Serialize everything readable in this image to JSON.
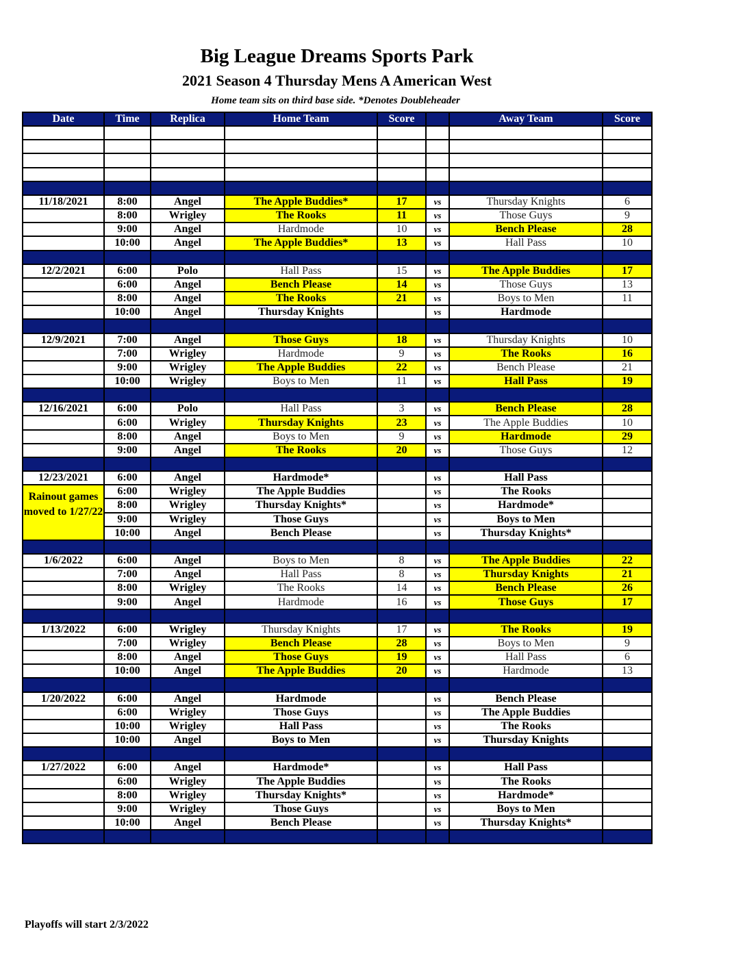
{
  "title": "Big League Dreams Sports Park",
  "subtitle": "2021 Season 4 Thursday Mens A American West",
  "note": "Home team sits on third base side.  *Denotes Doubleheader",
  "footer": "Playoffs will start 2/3/2022",
  "colors": {
    "header": "#0a1a7a",
    "winner": "#ffff00"
  },
  "columns": [
    "Date",
    "Time",
    "Replica",
    "Home Team",
    "Score",
    "",
    "Away Team",
    "Score"
  ],
  "vs_label": "vs",
  "blank_rows": 4,
  "groups": [
    {
      "date": "11/18/2021",
      "games": [
        {
          "time": "8:00",
          "replica": "Angel",
          "home": "The Apple Buddies*",
          "home_score": "17",
          "away": "Thursday Knights",
          "away_score": "6",
          "winner": "home"
        },
        {
          "time": "8:00",
          "replica": "Wrigley",
          "home": "The Rooks",
          "home_score": "11",
          "away": "Those Guys",
          "away_score": "9",
          "winner": "home"
        },
        {
          "time": "9:00",
          "replica": "Angel",
          "home": "Hardmode",
          "home_score": "10",
          "away": "Bench Please",
          "away_score": "28",
          "winner": "away"
        },
        {
          "time": "10:00",
          "replica": "Angel",
          "home": "The Apple Buddies*",
          "home_score": "13",
          "away": "Hall Pass",
          "away_score": "10",
          "winner": "home"
        }
      ]
    },
    {
      "date": "12/2/2021",
      "games": [
        {
          "time": "6:00",
          "replica": "Polo",
          "home": "Hall Pass",
          "home_score": "15",
          "away": "The Apple Buddies",
          "away_score": "17",
          "winner": "away"
        },
        {
          "time": "6:00",
          "replica": "Angel",
          "home": "Bench Please",
          "home_score": "14",
          "away": "Those Guys",
          "away_score": "13",
          "winner": "home"
        },
        {
          "time": "8:00",
          "replica": "Angel",
          "home": "The Rooks",
          "home_score": "21",
          "away": "Boys to Men",
          "away_score": "11",
          "winner": "home"
        },
        {
          "time": "10:00",
          "replica": "Angel",
          "home": "Thursday Knights",
          "home_score": "",
          "away": "Hardmode",
          "away_score": "",
          "winner": ""
        }
      ]
    },
    {
      "date": "12/9/2021",
      "games": [
        {
          "time": "7:00",
          "replica": "Angel",
          "home": "Those Guys",
          "home_score": "18",
          "away": "Thursday Knights",
          "away_score": "10",
          "winner": "home"
        },
        {
          "time": "7:00",
          "replica": "Wrigley",
          "home": "Hardmode",
          "home_score": "9",
          "away": "The Rooks",
          "away_score": "16",
          "winner": "away"
        },
        {
          "time": "9:00",
          "replica": "Wrigley",
          "home": "The Apple Buddies",
          "home_score": "22",
          "away": "Bench Please",
          "away_score": "21",
          "winner": "home"
        },
        {
          "time": "10:00",
          "replica": "Wrigley",
          "home": "Boys to Men",
          "home_score": "11",
          "away": "Hall Pass",
          "away_score": "19",
          "winner": "away"
        }
      ]
    },
    {
      "date": "12/16/2021",
      "games": [
        {
          "time": "6:00",
          "replica": "Polo",
          "home": "Hall Pass",
          "home_score": "3",
          "away": "Bench Please",
          "away_score": "28",
          "winner": "away"
        },
        {
          "time": "6:00",
          "replica": "Wrigley",
          "home": "Thursday Knights",
          "home_score": "23",
          "away": "The Apple Buddies",
          "away_score": "10",
          "winner": "home"
        },
        {
          "time": "8:00",
          "replica": "Angel",
          "home": "Boys to Men",
          "home_score": "9",
          "away": "Hardmode",
          "away_score": "29",
          "winner": "away"
        },
        {
          "time": "9:00",
          "replica": "Angel",
          "home": "The Rooks",
          "home_score": "20",
          "away": "Those Guys",
          "away_score": "12",
          "winner": "home"
        }
      ]
    },
    {
      "date": "12/23/2021",
      "date_note": "Rainout games moved to 1/27/22",
      "games": [
        {
          "time": "6:00",
          "replica": "Angel",
          "home": "Hardmode*",
          "home_score": "",
          "away": "Hall Pass",
          "away_score": "",
          "winner": ""
        },
        {
          "time": "6:00",
          "replica": "Wrigley",
          "home": "The Apple Buddies",
          "home_score": "",
          "away": "The Rooks",
          "away_score": "",
          "winner": ""
        },
        {
          "time": "8:00",
          "replica": "Wrigley",
          "home": "Thursday Knights*",
          "home_score": "",
          "away": "Hardmode*",
          "away_score": "",
          "winner": ""
        },
        {
          "time": "9:00",
          "replica": "Wrigley",
          "home": "Those Guys",
          "home_score": "",
          "away": "Boys to Men",
          "away_score": "",
          "winner": ""
        },
        {
          "time": "10:00",
          "replica": "Angel",
          "home": "Bench Please",
          "home_score": "",
          "away": "Thursday Knights*",
          "away_score": "",
          "winner": ""
        }
      ]
    },
    {
      "date": "1/6/2022",
      "games": [
        {
          "time": "6:00",
          "replica": "Angel",
          "home": "Boys to Men",
          "home_score": "8",
          "away": "The Apple Buddies",
          "away_score": "22",
          "winner": "away"
        },
        {
          "time": "7:00",
          "replica": "Angel",
          "home": "Hall Pass",
          "home_score": "8",
          "away": "Thursday Knights",
          "away_score": "21",
          "winner": "away"
        },
        {
          "time": "8:00",
          "replica": "Wrigley",
          "home": "The Rooks",
          "home_score": "14",
          "away": "Bench Please",
          "away_score": "26",
          "winner": "away"
        },
        {
          "time": "9:00",
          "replica": "Angel",
          "home": "Hardmode",
          "home_score": "16",
          "away": "Those Guys",
          "away_score": "17",
          "winner": "away"
        }
      ]
    },
    {
      "date": "1/13/2022",
      "games": [
        {
          "time": "6:00",
          "replica": "Wrigley",
          "home": "Thursday Knights",
          "home_score": "17",
          "away": "The Rooks",
          "away_score": "19",
          "winner": "away"
        },
        {
          "time": "7:00",
          "replica": "Wrigley",
          "home": "Bench Please",
          "home_score": "28",
          "away": "Boys to Men",
          "away_score": "9",
          "winner": "home"
        },
        {
          "time": "8:00",
          "replica": "Angel",
          "home": "Those Guys",
          "home_score": "19",
          "away": "Hall Pass",
          "away_score": "6",
          "winner": "home"
        },
        {
          "time": "10:00",
          "replica": "Angel",
          "home": "The Apple Buddies",
          "home_score": "20",
          "away": "Hardmode",
          "away_score": "13",
          "winner": "home"
        }
      ]
    },
    {
      "date": "1/20/2022",
      "games": [
        {
          "time": "6:00",
          "replica": "Angel",
          "home": "Hardmode",
          "home_score": "",
          "away": "Bench Please",
          "away_score": "",
          "winner": ""
        },
        {
          "time": "6:00",
          "replica": "Wrigley",
          "home": "Those Guys",
          "home_score": "",
          "away": "The Apple Buddies",
          "away_score": "",
          "winner": ""
        },
        {
          "time": "10:00",
          "replica": "Wrigley",
          "home": "Hall Pass",
          "home_score": "",
          "away": "The Rooks",
          "away_score": "",
          "winner": ""
        },
        {
          "time": "10:00",
          "replica": "Angel",
          "home": "Boys to Men",
          "home_score": "",
          "away": "Thursday Knights",
          "away_score": "",
          "winner": ""
        }
      ]
    },
    {
      "date": "1/27/2022",
      "games": [
        {
          "time": "6:00",
          "replica": "Angel",
          "home": "Hardmode*",
          "home_score": "",
          "away": "Hall Pass",
          "away_score": "",
          "winner": ""
        },
        {
          "time": "6:00",
          "replica": "Wrigley",
          "home": "The Apple Buddies",
          "home_score": "",
          "away": "The Rooks",
          "away_score": "",
          "winner": ""
        },
        {
          "time": "8:00",
          "replica": "Wrigley",
          "home": "Thursday Knights*",
          "home_score": "",
          "away": "Hardmode*",
          "away_score": "",
          "winner": ""
        },
        {
          "time": "9:00",
          "replica": "Wrigley",
          "home": "Those Guys",
          "home_score": "",
          "away": "Boys to Men",
          "away_score": "",
          "winner": ""
        },
        {
          "time": "10:00",
          "replica": "Angel",
          "home": "Bench Please",
          "home_score": "",
          "away": "Thursday Knights*",
          "away_score": "",
          "winner": ""
        }
      ]
    }
  ]
}
